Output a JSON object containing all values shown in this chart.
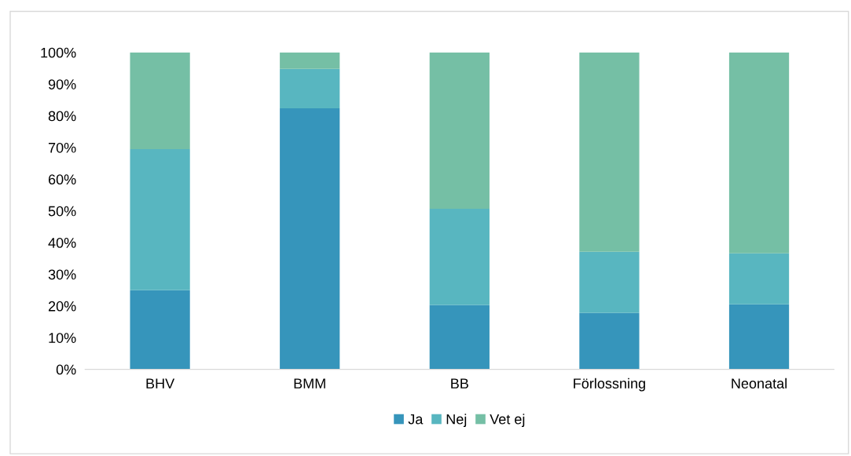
{
  "chart_data": {
    "type": "bar",
    "stacked": true,
    "categories": [
      "BHV",
      "BMM",
      "BB",
      "Förlossning",
      "Neonatal"
    ],
    "series": [
      {
        "name": "Ja",
        "color": "#3695bb",
        "values": [
          25,
          82.4,
          20.3,
          17.8,
          20.5
        ]
      },
      {
        "name": "Nej",
        "color": "#58b6c0",
        "values": [
          44.5,
          12.4,
          30.4,
          19.3,
          16.1
        ]
      },
      {
        "name": "Vet ej",
        "color": "#75bfa5",
        "values": [
          30.5,
          5.2,
          49.3,
          62.9,
          63.4
        ]
      }
    ],
    "ylim": [
      0,
      100
    ],
    "yticks": [
      {
        "value": 0,
        "label": "0%"
      },
      {
        "value": 10,
        "label": "10%"
      },
      {
        "value": 20,
        "label": "20%"
      },
      {
        "value": 30,
        "label": "30%"
      },
      {
        "value": 40,
        "label": "40%"
      },
      {
        "value": 50,
        "label": "50%"
      },
      {
        "value": 60,
        "label": "60%"
      },
      {
        "value": 70,
        "label": "70%"
      },
      {
        "value": 80,
        "label": "80%"
      },
      {
        "value": 90,
        "label": "90%"
      },
      {
        "value": 100,
        "label": "100%"
      }
    ],
    "grid": false,
    "legend": "bottom"
  }
}
